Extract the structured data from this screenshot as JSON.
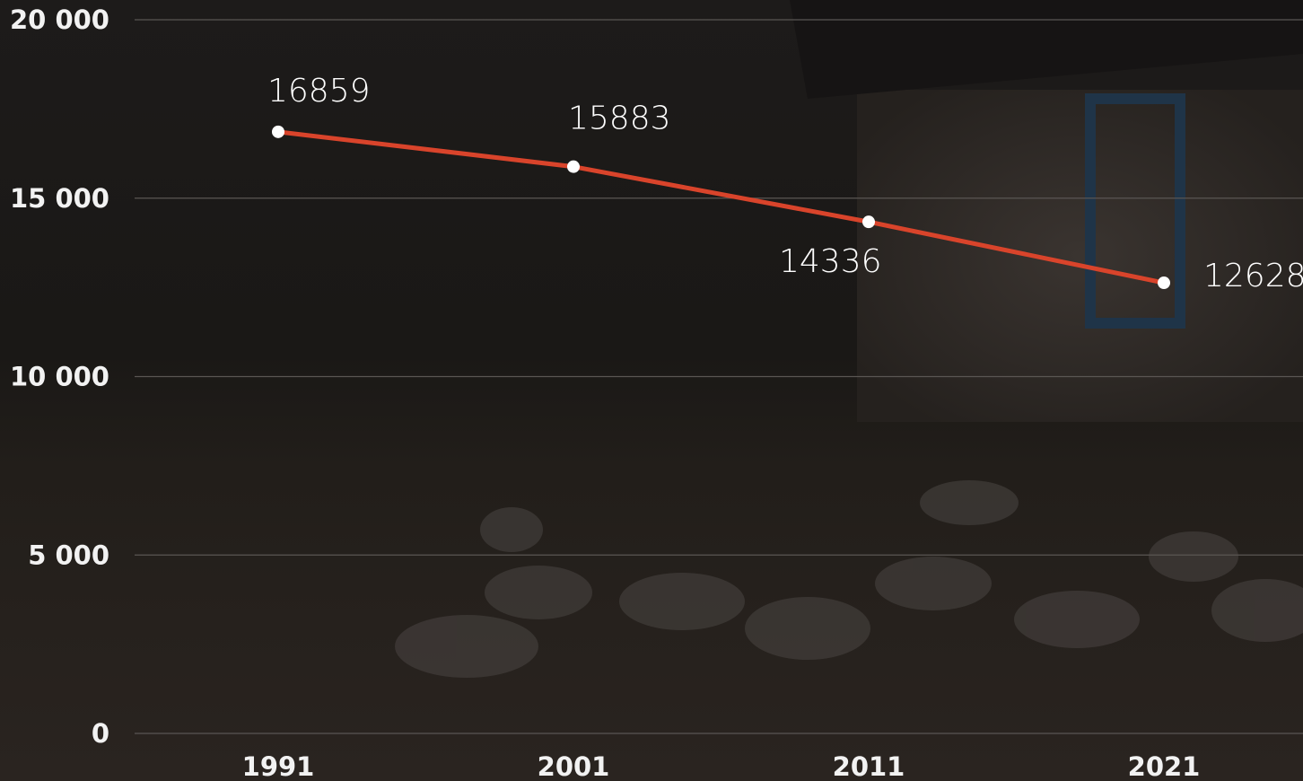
{
  "chart_data": {
    "type": "line",
    "categories": [
      "1991",
      "2001",
      "2011",
      "2021"
    ],
    "series": [
      {
        "name": null,
        "color": "#d9442b",
        "values": [
          16859,
          15883,
          14336,
          12628
        ]
      }
    ],
    "ylim": [
      0,
      20000
    ],
    "yticks": [
      0,
      {
        "value": 5000,
        "label": "5 000"
      },
      {
        "value": 10000,
        "label": "10 000"
      },
      {
        "value": 15000,
        "label": "15 000"
      },
      {
        "value": 20000,
        "label": "20 000"
      }
    ],
    "grid": true
  }
}
